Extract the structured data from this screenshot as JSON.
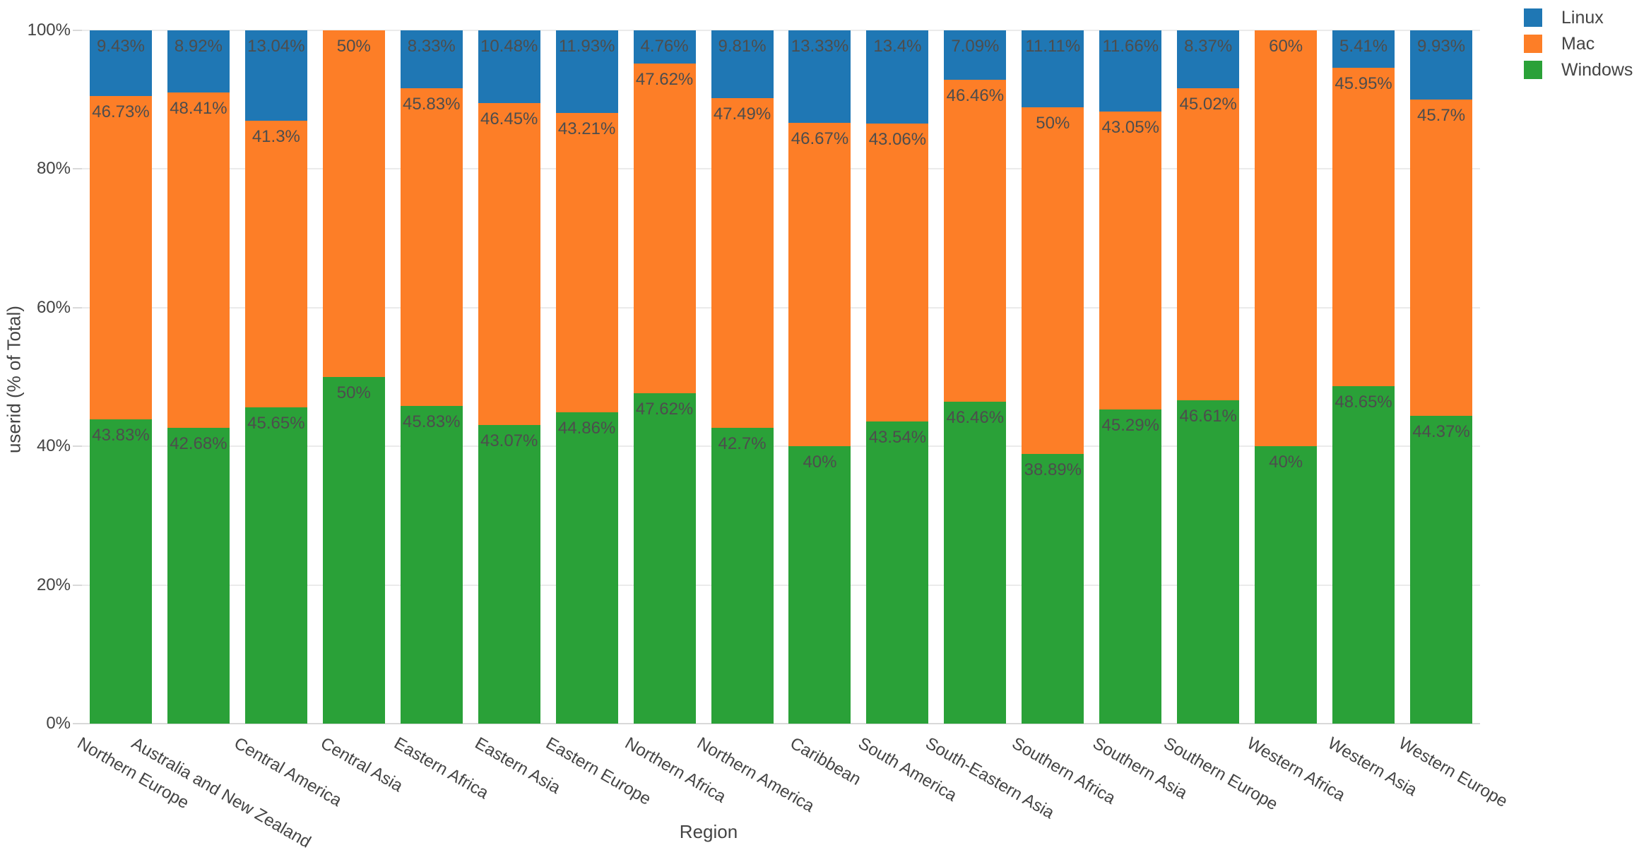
{
  "chart_data": {
    "type": "bar",
    "stacked": true,
    "percent_stacked": true,
    "title": "",
    "xlabel": "Region",
    "ylabel": "userid (% of Total)",
    "ylim": [
      0,
      100
    ],
    "y_tick_values": [
      0,
      20,
      40,
      60,
      80,
      100
    ],
    "y_tick_labels": [
      "0%",
      "20%",
      "40%",
      "60%",
      "80%",
      "100%"
    ],
    "x_tick_angle_deg": 30,
    "grid": true,
    "legend_position": "top-right",
    "legend_order": [
      "Linux",
      "Mac",
      "Windows"
    ],
    "stack_order_bottom_to_top": [
      "Windows",
      "Mac",
      "Linux"
    ],
    "categories": [
      "Northern Europe",
      "Australia and New Zealand",
      "Central America",
      "Central Asia",
      "Eastern Africa",
      "Eastern Asia",
      "Eastern Europe",
      "Northern Africa",
      "Northern America",
      "Caribbean",
      "South America",
      "South-Eastern Asia",
      "Southern Africa",
      "Southern Asia",
      "Southern Europe",
      "Western Africa",
      "Western Asia",
      "Western Europe"
    ],
    "series": [
      {
        "name": "Linux",
        "color": "#1f77b4",
        "values": [
          9.43,
          8.92,
          13.04,
          0,
          8.33,
          10.48,
          11.93,
          4.76,
          9.81,
          13.33,
          13.4,
          7.09,
          11.11,
          11.66,
          8.37,
          0,
          5.41,
          9.93
        ],
        "labels": [
          "9.43%",
          "8.92%",
          "13.04%",
          null,
          "8.33%",
          "10.48%",
          "11.93%",
          "4.76%",
          "9.81%",
          "13.33%",
          "13.4%",
          "7.09%",
          "11.11%",
          "11.66%",
          "8.37%",
          null,
          "5.41%",
          "9.93%"
        ]
      },
      {
        "name": "Mac",
        "color": "#fd7e27",
        "values": [
          46.73,
          48.41,
          41.3,
          50,
          45.83,
          46.45,
          43.21,
          47.62,
          47.49,
          46.67,
          43.06,
          46.46,
          50,
          43.05,
          45.02,
          60,
          45.95,
          45.7
        ],
        "labels": [
          "46.73%",
          "48.41%",
          "41.3%",
          "50%",
          "45.83%",
          "46.45%",
          "43.21%",
          "47.62%",
          "47.49%",
          "46.67%",
          "43.06%",
          "46.46%",
          "50%",
          "43.05%",
          "45.02%",
          "60%",
          "45.95%",
          "45.7%"
        ]
      },
      {
        "name": "Windows",
        "color": "#2aa138",
        "values": [
          43.83,
          42.68,
          45.65,
          50,
          45.83,
          43.07,
          44.86,
          47.62,
          42.7,
          40,
          43.54,
          46.46,
          38.89,
          45.29,
          46.61,
          40,
          48.65,
          44.37
        ],
        "labels": [
          "43.83%",
          "42.68%",
          "45.65%",
          "50%",
          "45.83%",
          "43.07%",
          "44.86%",
          "47.62%",
          "42.7%",
          "40%",
          "43.54%",
          "46.46%",
          "38.89%",
          "45.29%",
          "46.61%",
          "40%",
          "48.65%",
          "44.37%"
        ]
      }
    ]
  }
}
